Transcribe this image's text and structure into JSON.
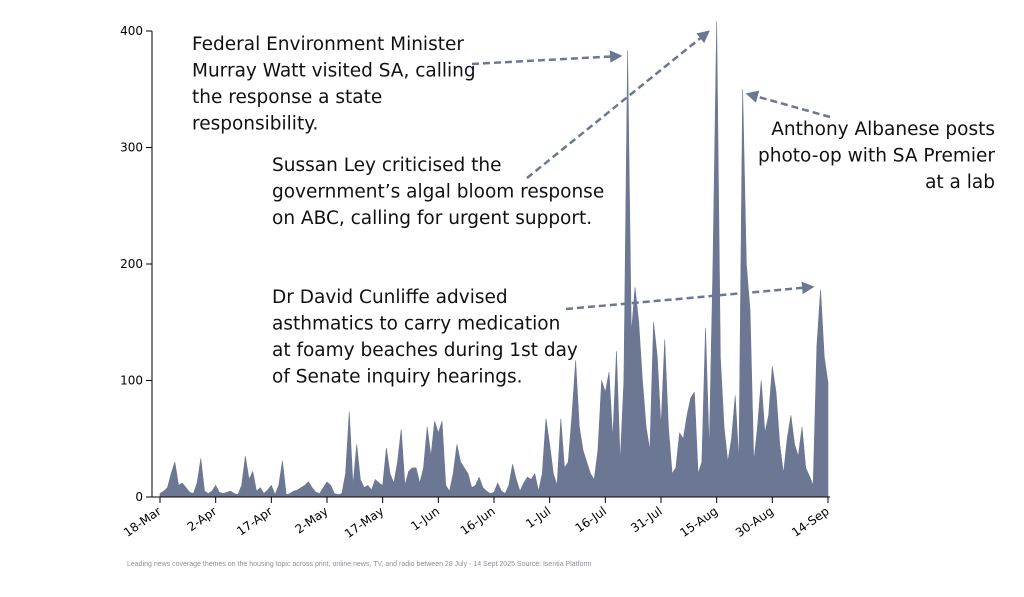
{
  "chart_data": {
    "type": "area",
    "categories": [
      "18-Mar",
      null,
      null,
      null,
      null,
      null,
      null,
      null,
      null,
      null,
      null,
      null,
      null,
      null,
      null,
      "2-Apr",
      null,
      null,
      null,
      null,
      null,
      null,
      null,
      null,
      null,
      null,
      null,
      null,
      null,
      null,
      "17-Apr",
      null,
      null,
      null,
      null,
      null,
      null,
      null,
      null,
      null,
      null,
      null,
      null,
      null,
      null,
      "2-May",
      null,
      null,
      null,
      null,
      null,
      null,
      null,
      null,
      null,
      null,
      null,
      null,
      null,
      null,
      "17-May",
      null,
      null,
      null,
      null,
      null,
      null,
      null,
      null,
      null,
      null,
      null,
      null,
      null,
      null,
      "1-Jun",
      null,
      null,
      null,
      null,
      null,
      null,
      null,
      null,
      null,
      null,
      null,
      null,
      null,
      null,
      "16-Jun",
      null,
      null,
      null,
      null,
      null,
      null,
      null,
      null,
      null,
      null,
      null,
      null,
      null,
      null,
      "1-Jul",
      null,
      null,
      null,
      null,
      null,
      null,
      null,
      null,
      null,
      null,
      null,
      null,
      null,
      null,
      "16-Jul",
      null,
      null,
      null,
      null,
      null,
      null,
      null,
      null,
      null,
      null,
      null,
      null,
      null,
      null,
      "31-Jul",
      null,
      null,
      null,
      null,
      null,
      null,
      null,
      null,
      null,
      null,
      null,
      null,
      null,
      null,
      "15-Aug",
      null,
      null,
      null,
      null,
      null,
      null,
      null,
      null,
      null,
      null,
      null,
      null,
      null,
      null,
      "30-Aug",
      null,
      null,
      null,
      null,
      null,
      null,
      null,
      null,
      null,
      null,
      null,
      null,
      null,
      null,
      "14-Sep"
    ],
    "values": [
      3,
      5,
      8,
      20,
      30,
      10,
      12,
      8,
      4,
      3,
      12,
      33,
      5,
      3,
      5,
      10,
      4,
      3,
      4,
      5,
      3,
      2,
      10,
      35,
      15,
      22,
      5,
      8,
      3,
      6,
      10,
      2,
      10,
      31,
      2,
      3,
      5,
      6,
      8,
      10,
      13,
      8,
      4,
      3,
      8,
      13,
      10,
      3,
      2,
      3,
      20,
      73,
      10,
      45,
      15,
      8,
      10,
      6,
      15,
      12,
      10,
      42,
      20,
      12,
      30,
      58,
      10,
      22,
      25,
      25,
      12,
      25,
      60,
      35,
      65,
      55,
      65,
      10,
      5,
      20,
      45,
      30,
      25,
      20,
      8,
      10,
      17,
      8,
      5,
      3,
      4,
      12,
      5,
      3,
      10,
      28,
      15,
      5,
      12,
      17,
      15,
      20,
      5,
      20,
      67,
      45,
      20,
      10,
      67,
      25,
      30,
      70,
      117,
      60,
      40,
      30,
      20,
      15,
      40,
      100,
      90,
      107,
      50,
      125,
      30,
      100,
      383,
      140,
      180,
      150,
      100,
      60,
      40,
      150,
      120,
      60,
      135,
      60,
      20,
      25,
      55,
      50,
      70,
      85,
      90,
      20,
      30,
      145,
      40,
      200,
      408,
      120,
      60,
      30,
      50,
      87,
      30,
      350,
      200,
      160,
      30,
      60,
      100,
      55,
      70,
      112,
      90,
      45,
      20,
      50,
      70,
      45,
      35,
      60,
      25,
      18,
      10,
      130,
      178,
      120,
      98
    ],
    "color": "#6c7794",
    "ylim": [
      0,
      400
    ],
    "yticks": [
      0,
      100,
      200,
      300,
      400
    ],
    "annotations": [
      {
        "lines": [
          "Federal Environment Minister",
          "Murray Watt visited SA, calling",
          "the response a state",
          "responsibility."
        ]
      },
      {
        "lines": [
          "Sussan Ley criticised the",
          "government’s algal bloom response",
          "on ABC, calling for urgent support."
        ]
      },
      {
        "lines": [
          "Anthony Albanese posts",
          "photo-op with SA Premier",
          "at a lab"
        ]
      },
      {
        "lines": [
          "Dr David Cunliffe advised",
          "asthmatics to carry medication",
          "at foamy beaches during 1st day",
          "of Senate inquiry hearings."
        ]
      }
    ],
    "footnote": "Leading news coverage themes on the housing topic across print, online news, TV, and radio between 28 July - 14 Sept 2025 Source: Isentia Platform"
  }
}
